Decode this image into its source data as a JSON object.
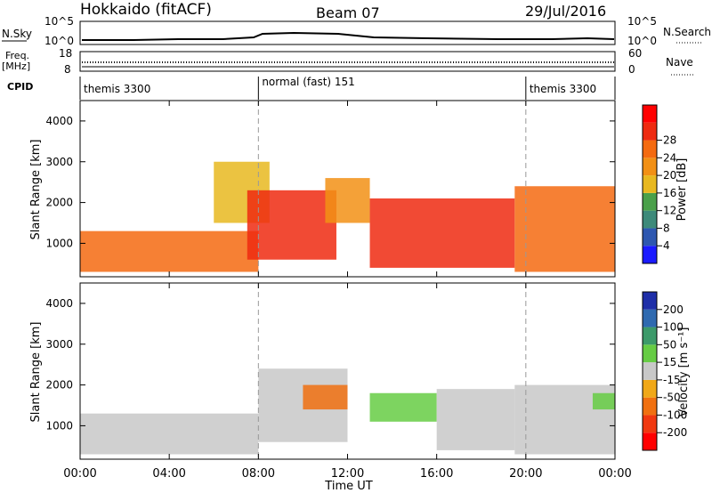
{
  "header": {
    "station": "Hokkaido (fitACF)",
    "beam": "Beam 07",
    "date": "29/Jul/2016"
  },
  "noise_panel": {
    "label": "N.Sky",
    "right_label": "N.Search",
    "left_ticks": [
      "10^5",
      "10^0"
    ],
    "right_ticks": [
      "10^5",
      "10^0"
    ]
  },
  "freq_panel": {
    "label_top": "Freq.",
    "label_unit": "[MHz]",
    "left_ticks": [
      "18",
      "8"
    ],
    "right_ticks": [
      "60",
      "0"
    ],
    "right_label": "Nave"
  },
  "cpid": {
    "label": "CPID",
    "segments": [
      {
        "name": "themis 3300",
        "start_hour": 0,
        "end_hour": 8
      },
      {
        "name": "normal (fast) 151",
        "start_hour": 8,
        "end_hour": 20
      },
      {
        "name": "themis 3300",
        "start_hour": 20,
        "end_hour": 24
      }
    ]
  },
  "time_axis": {
    "label": "Time UT",
    "ticks": [
      "00:00",
      "04:00",
      "08:00",
      "12:00",
      "16:00",
      "20:00",
      "00:00"
    ]
  },
  "range_axis": {
    "label": "Slant Range [km]",
    "ticks": [
      "1000",
      "2000",
      "3000",
      "4000"
    ]
  },
  "power_scale": {
    "label": "Power [dB]",
    "ticks": [
      "4",
      "8",
      "12",
      "16",
      "20",
      "24",
      "28"
    ],
    "colors": [
      "#1a1aff",
      "#2d57b0",
      "#3d8a7a",
      "#4aa04a",
      "#e8b820",
      "#f29015",
      "#f46a10",
      "#ee2a10",
      "#ff0000"
    ]
  },
  "velocity_scale": {
    "label": "Velocity [m s⁻¹]",
    "ticks": [
      "200",
      "100",
      "50",
      "15",
      "-15",
      "-50",
      "-100",
      "-200"
    ],
    "colors": [
      "#1e2ea8",
      "#2f6ab0",
      "#3c9a6a",
      "#66cc44",
      "#c8c8c8",
      "#f0a818",
      "#f07010",
      "#f03810",
      "#ff0000"
    ]
  },
  "chart_data": {
    "type": "heatmap",
    "title": "Hokkaido (fitACF) Beam 07 29/Jul/2016",
    "xlabel": "Time UT",
    "xlim": [
      0,
      24
    ],
    "ylim": [
      180,
      4500
    ],
    "panels": [
      {
        "name": "Power",
        "unit": "dB",
        "echo_regions": [
          {
            "t_start": 0.0,
            "t_end": 8.0,
            "range_min": 300,
            "range_max": 1300,
            "value": 24
          },
          {
            "t_start": 6.0,
            "t_end": 8.5,
            "range_min": 1500,
            "range_max": 3000,
            "value": 14
          },
          {
            "t_start": 7.5,
            "t_end": 11.5,
            "range_min": 600,
            "range_max": 2300,
            "value": 28
          },
          {
            "t_start": 11.0,
            "t_end": 13.0,
            "range_min": 1500,
            "range_max": 2600,
            "value": 20
          },
          {
            "t_start": 13.0,
            "t_end": 19.5,
            "range_min": 400,
            "range_max": 2100,
            "value": 26
          },
          {
            "t_start": 19.5,
            "t_end": 24.0,
            "range_min": 300,
            "range_max": 2400,
            "value": 22
          }
        ]
      },
      {
        "name": "Velocity",
        "unit": "m s-1",
        "echo_regions": [
          {
            "t_start": 0.0,
            "t_end": 8.0,
            "range_min": 300,
            "range_max": 1300,
            "value": 0
          },
          {
            "t_start": 8.0,
            "t_end": 12.0,
            "range_min": 600,
            "range_max": 2400,
            "value": 0
          },
          {
            "t_start": 10.0,
            "t_end": 12.0,
            "range_min": 1400,
            "range_max": 2000,
            "value": -40
          },
          {
            "t_start": 13.0,
            "t_end": 16.0,
            "range_min": 1100,
            "range_max": 1800,
            "value": 30
          },
          {
            "t_start": 16.0,
            "t_end": 19.5,
            "range_min": 400,
            "range_max": 1900,
            "value": -10
          },
          {
            "t_start": 19.5,
            "t_end": 24.0,
            "range_min": 300,
            "range_max": 2000,
            "value": 0
          },
          {
            "t_start": 23.0,
            "t_end": 24.0,
            "range_min": 1400,
            "range_max": 1800,
            "value": 30
          }
        ]
      }
    ]
  }
}
